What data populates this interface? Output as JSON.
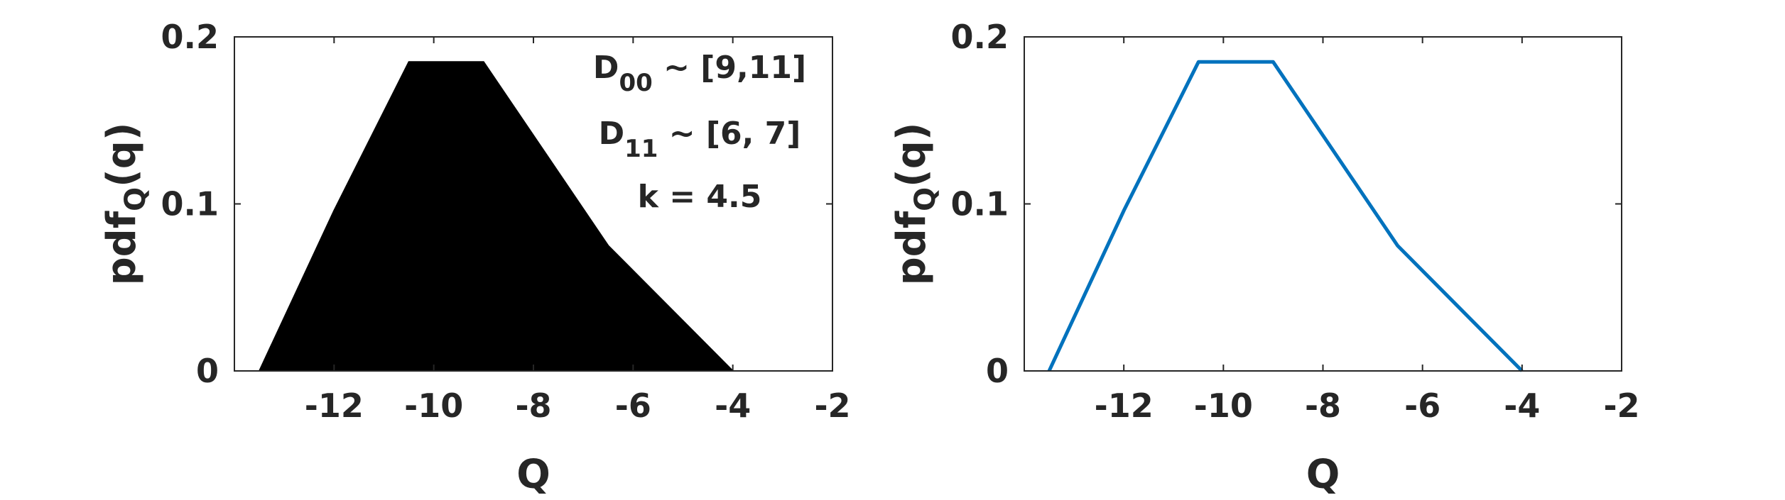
{
  "chart_data": [
    {
      "type": "area",
      "xlabel": "Q",
      "ylabel": {
        "base": "pdf",
        "sub": "Q",
        "arg": "(q)"
      },
      "xlim": [
        -14,
        -2
      ],
      "ylim": [
        0,
        0.2
      ],
      "xticks": [
        -12,
        -10,
        -8,
        -6,
        -4,
        -2
      ],
      "xtick_labels": [
        "-12",
        "-10",
        "-8",
        "-6",
        "-4",
        "-2"
      ],
      "yticks": [
        0,
        0.1,
        0.2
      ],
      "ytick_labels": [
        "0",
        "0.1",
        "0.2"
      ],
      "fill_color": "#000000",
      "x": [
        -13.5,
        -12,
        -10.5,
        -9,
        -6.5,
        -4
      ],
      "y": [
        0,
        0.096,
        0.185,
        0.185,
        0.075,
        0
      ],
      "annotations": [
        {
          "base": "D",
          "sub": "00",
          "rest": " ~ [9,11]"
        },
        {
          "base": "D",
          "sub": "11",
          "rest": " ~ [6, 7]"
        },
        {
          "base": "k = 4.5",
          "sub": "",
          "rest": ""
        }
      ]
    },
    {
      "type": "line",
      "xlabel": "Q",
      "ylabel": {
        "base": "pdf",
        "sub": "Q",
        "arg": "(q)"
      },
      "xlim": [
        -14,
        -2
      ],
      "ylim": [
        0,
        0.2
      ],
      "xticks": [
        -12,
        -10,
        -8,
        -6,
        -4,
        -2
      ],
      "xtick_labels": [
        "-12",
        "-10",
        "-8",
        "-6",
        "-4",
        "-2"
      ],
      "yticks": [
        0,
        0.1,
        0.2
      ],
      "ytick_labels": [
        "0",
        "0.1",
        "0.2"
      ],
      "line_color": "#0072BD",
      "x": [
        -13.5,
        -12,
        -10.5,
        -9,
        -6.5,
        -4
      ],
      "y": [
        0,
        0.096,
        0.185,
        0.185,
        0.075,
        0
      ]
    }
  ]
}
